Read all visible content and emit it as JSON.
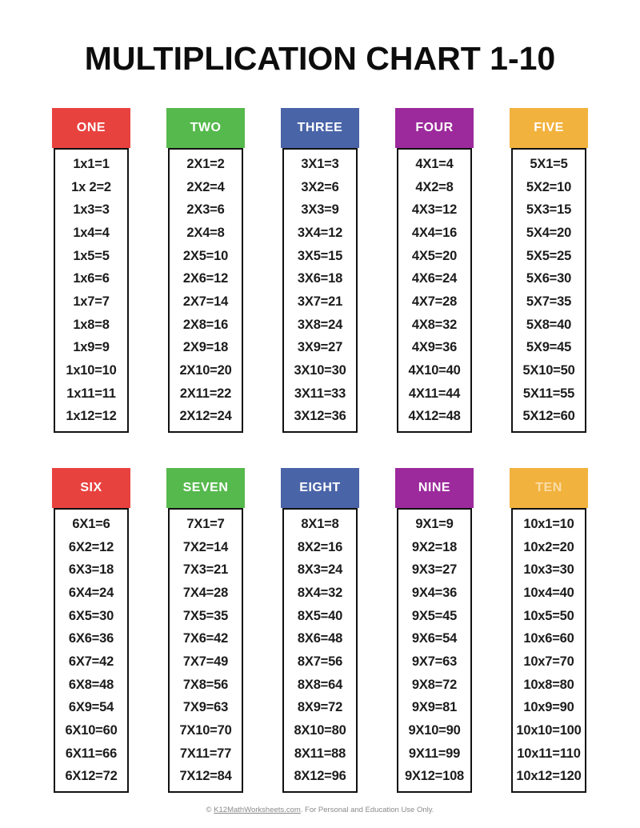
{
  "page": {
    "title": "MULTIPLICATION CHART 1-10",
    "background_color": "#ffffff",
    "text_color": "#1c1c1c",
    "border_color": "#111111"
  },
  "footer": {
    "prefix": "© ",
    "link_text": "K12MathWorksheets.com",
    "suffix": ". For Personal and Education Use Only."
  },
  "cards": [
    {
      "label": "ONE",
      "header_color": "#e8423f",
      "label_color": "#ffffff",
      "label_opacity": 1,
      "facts": [
        "1x1=1",
        "1x 2=2",
        "1x3=3",
        "1x4=4",
        "1x5=5",
        "1x6=6",
        "1x7=7",
        "1x8=8",
        "1x9=9",
        "1x10=10",
        "1x11=11",
        "1x12=12"
      ]
    },
    {
      "label": "TWO",
      "header_color": "#56b94d",
      "label_color": "#ffffff",
      "label_opacity": 1,
      "facts": [
        "2X1=2",
        "2X2=4",
        "2X3=6",
        "2X4=8",
        "2X5=10",
        "2X6=12",
        "2X7=14",
        "2X8=16",
        "2X9=18",
        "2X10=20",
        "2X11=22",
        "2X12=24"
      ]
    },
    {
      "label": "THREE",
      "header_color": "#4a64a8",
      "label_color": "#ffffff",
      "label_opacity": 1,
      "facts": [
        "3X1=3",
        "3X2=6",
        "3X3=9",
        "3X4=12",
        "3X5=15",
        "3X6=18",
        "3X7=21",
        "3X8=24",
        "3X9=27",
        "3X10=30",
        "3X11=33",
        "3X12=36"
      ]
    },
    {
      "label": "FOUR",
      "header_color": "#9c2a9c",
      "label_color": "#ffffff",
      "label_opacity": 1,
      "facts": [
        "4X1=4",
        "4X2=8",
        "4X3=12",
        "4X4=16",
        "4X5=20",
        "4X6=24",
        "4X7=28",
        "4X8=32",
        "4X9=36",
        "4X10=40",
        "4X11=44",
        "4X12=48"
      ]
    },
    {
      "label": "FIVE",
      "header_color": "#f2b23e",
      "label_color": "#ffffff",
      "label_opacity": 1,
      "facts": [
        "5X1=5",
        "5X2=10",
        "5X3=15",
        "5X4=20",
        "5X5=25",
        "5X6=30",
        "5X7=35",
        "5X8=40",
        "5X9=45",
        "5X10=50",
        "5X11=55",
        "5X12=60"
      ]
    },
    {
      "label": "SIX",
      "header_color": "#e8423f",
      "label_color": "#ffffff",
      "label_opacity": 1,
      "facts": [
        "6X1=6",
        "6X2=12",
        "6X3=18",
        "6X4=24",
        "6X5=30",
        "6X6=36",
        "6X7=42",
        "6X8=48",
        "6X9=54",
        "6X10=60",
        "6X11=66",
        "6X12=72"
      ]
    },
    {
      "label": "SEVEN",
      "header_color": "#56b94d",
      "label_color": "#ffffff",
      "label_opacity": 1,
      "facts": [
        "7X1=7",
        "7X2=14",
        "7X3=21",
        "7X4=28",
        "7X5=35",
        "7X6=42",
        "7X7=49",
        "7X8=56",
        "7X9=63",
        "7X10=70",
        "7X11=77",
        "7X12=84"
      ]
    },
    {
      "label": "EIGHT",
      "header_color": "#4a64a8",
      "label_color": "#ffffff",
      "label_opacity": 1,
      "facts": [
        "8X1=8",
        "8X2=16",
        "8X3=24",
        "8X4=32",
        "8X5=40",
        "8X6=48",
        "8X7=56",
        "8X8=64",
        "8X9=72",
        "8X10=80",
        "8X11=88",
        "8X12=96"
      ]
    },
    {
      "label": "NINE",
      "header_color": "#9c2a9c",
      "label_color": "#ffffff",
      "label_opacity": 1,
      "facts": [
        "9X1=9",
        "9X2=18",
        "9X3=27",
        "9X4=36",
        "9X5=45",
        "9X6=54",
        "9X7=63",
        "9X8=72",
        "9X9=81",
        "9X10=90",
        "9X11=99",
        "9X12=108"
      ]
    },
    {
      "label": "TEN",
      "header_color": "#f2b23e",
      "label_color": "#ffffff",
      "label_opacity": 0.55,
      "facts": [
        "10x1=10",
        "10x2=20",
        "10x3=30",
        "10x4=40",
        "10x5=50",
        "10x6=60",
        "10x7=70",
        "10x8=80",
        "10x9=90",
        "10x10=100",
        "10x11=110",
        "10x12=120"
      ]
    }
  ]
}
